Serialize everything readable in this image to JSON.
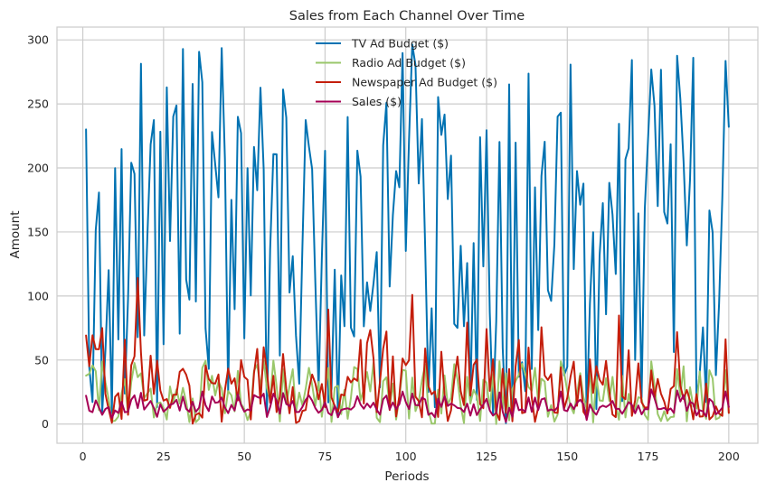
{
  "chart_data": {
    "type": "line",
    "title": "Sales from Each Channel Over Time",
    "xlabel": "Periods",
    "ylabel": "Amount",
    "xlim": [
      -8,
      209
    ],
    "ylim": [
      -15,
      310
    ],
    "xticks": [
      0,
      25,
      50,
      75,
      100,
      125,
      150,
      175,
      200
    ],
    "yticks": [
      0,
      50,
      100,
      150,
      200,
      250,
      300
    ],
    "grid": true,
    "legend_position": "top-center",
    "x": [
      1,
      2,
      3,
      4,
      5,
      6,
      7,
      8,
      9,
      10,
      11,
      12,
      13,
      14,
      15,
      16,
      17,
      18,
      19,
      20,
      21,
      22,
      23,
      24,
      25,
      26,
      27,
      28,
      29,
      30,
      31,
      32,
      33,
      34,
      35,
      36,
      37,
      38,
      39,
      40,
      41,
      42,
      43,
      44,
      45,
      46,
      47,
      48,
      49,
      50,
      51,
      52,
      53,
      54,
      55,
      56,
      57,
      58,
      59,
      60,
      61,
      62,
      63,
      64,
      65,
      66,
      67,
      68,
      69,
      70,
      71,
      72,
      73,
      74,
      75,
      76,
      77,
      78,
      79,
      80,
      81,
      82,
      83,
      84,
      85,
      86,
      87,
      88,
      89,
      90,
      91,
      92,
      93,
      94,
      95,
      96,
      97,
      98,
      99,
      100,
      101,
      102,
      103,
      104,
      105,
      106,
      107,
      108,
      109,
      110,
      111,
      112,
      113,
      114,
      115,
      116,
      117,
      118,
      119,
      120,
      121,
      122,
      123,
      124,
      125,
      126,
      127,
      128,
      129,
      130,
      131,
      132,
      133,
      134,
      135,
      136,
      137,
      138,
      139,
      140,
      141,
      142,
      143,
      144,
      145,
      146,
      147,
      148,
      149,
      150,
      151,
      152,
      153,
      154,
      155,
      156,
      157,
      158,
      159,
      160,
      161,
      162,
      163,
      164,
      165,
      166,
      167,
      168,
      169,
      170,
      171,
      172,
      173,
      174,
      175,
      176,
      177,
      178,
      179,
      180,
      181,
      182,
      183,
      184,
      185,
      186,
      187,
      188,
      189,
      190,
      191,
      192,
      193,
      194,
      195,
      196,
      197,
      198,
      199,
      200
    ],
    "series": [
      {
        "name": "TV Ad Budget ($)",
        "color": "#0072b2",
        "values": [
          230.1,
          44.5,
          17.2,
          151.5,
          180.8,
          8.7,
          57.5,
          120.2,
          8.6,
          199.8,
          66.1,
          214.7,
          23.8,
          97.5,
          204.1,
          195.4,
          67.8,
          281.4,
          69.2,
          147.3,
          218.4,
          237.4,
          13.2,
          228.3,
          62.3,
          262.9,
          142.9,
          240.1,
          248.8,
          70.6,
          292.9,
          112.9,
          97.2,
          265.6,
          95.7,
          290.7,
          266.9,
          74.7,
          43.1,
          228.0,
          202.5,
          177.0,
          293.6,
          206.9,
          25.1,
          175.1,
          89.7,
          239.9,
          227.2,
          66.9,
          199.8,
          100.4,
          216.4,
          182.6,
          262.7,
          198.9,
          7.3,
          136.2,
          210.8,
          210.7,
          53.5,
          261.3,
          239.3,
          102.7,
          131.1,
          69.0,
          31.5,
          139.3,
          237.4,
          216.8,
          199.1,
          109.8,
          26.8,
          129.4,
          213.4,
          16.9,
          27.5,
          120.5,
          5.4,
          116.0,
          76.4,
          239.8,
          75.3,
          68.4,
          213.5,
          193.2,
          76.3,
          110.7,
          88.3,
          109.8,
          134.3,
          28.6,
          217.7,
          250.9,
          107.4,
          163.3,
          197.6,
          184.9,
          289.7,
          135.2,
          222.4,
          296.4,
          280.2,
          187.9,
          238.2,
          137.9,
          25.0,
          90.4,
          13.1,
          255.4,
          225.8,
          241.7,
          175.7,
          209.6,
          78.2,
          75.1,
          139.2,
          76.4,
          125.7,
          19.4,
          141.3,
          18.8,
          224.0,
          123.1,
          229.5,
          87.2,
          7.8,
          80.2,
          220.3,
          59.6,
          0.7,
          265.2,
          8.4,
          219.8,
          36.9,
          48.3,
          25.6,
          273.7,
          43.0,
          184.9,
          73.4,
          193.7,
          220.5,
          104.6,
          96.2,
          140.3,
          240.1,
          243.2,
          38.0,
          44.7,
          280.7,
          121.0,
          197.6,
          171.3,
          187.8,
          4.1,
          93.9,
          149.8,
          11.7,
          131.7,
          172.5,
          85.7,
          188.4,
          163.5,
          117.2,
          234.5,
          17.9,
          206.8,
          215.4,
          284.3,
          50.0,
          164.5,
          19.6,
          168.4,
          222.4,
          276.9,
          248.4,
          170.2,
          276.7,
          165.6,
          156.6,
          218.5,
          56.2,
          287.6,
          253.8,
          205.0,
          139.5,
          191.1,
          286.0,
          18.7,
          39.5,
          75.5,
          17.2,
          166.8,
          149.7,
          38.2,
          94.2,
          177.0,
          283.6,
          232.1
        ]
      },
      {
        "name": "Radio Ad Budget ($)",
        "color": "#9ac76b",
        "values": [
          37.8,
          39.3,
          45.9,
          41.3,
          10.8,
          48.9,
          32.8,
          19.6,
          2.1,
          2.6,
          5.8,
          24.0,
          35.1,
          7.6,
          32.9,
          47.7,
          36.6,
          39.6,
          20.5,
          23.9,
          27.7,
          5.1,
          15.9,
          16.9,
          12.6,
          3.5,
          29.3,
          16.7,
          27.1,
          16.0,
          28.3,
          17.4,
          1.5,
          20.0,
          1.4,
          4.1,
          43.8,
          49.4,
          26.7,
          37.7,
          22.3,
          33.4,
          27.7,
          8.4,
          25.7,
          22.5,
          9.9,
          41.5,
          15.8,
          11.7,
          3.1,
          9.6,
          41.7,
          46.2,
          28.8,
          49.4,
          28.1,
          19.2,
          49.6,
          29.5,
          2.0,
          42.7,
          15.5,
          29.6,
          42.8,
          9.3,
          24.6,
          14.5,
          27.5,
          43.9,
          30.6,
          14.3,
          33.0,
          5.7,
          24.6,
          43.7,
          1.6,
          28.5,
          29.9,
          7.7,
          26.7,
          4.1,
          20.3,
          44.5,
          43.0,
          18.4,
          27.5,
          40.6,
          25.5,
          47.8,
          4.9,
          1.5,
          33.5,
          36.5,
          14.0,
          31.6,
          3.5,
          21.0,
          42.3,
          41.7,
          4.3,
          36.3,
          10.1,
          17.2,
          34.3,
          46.4,
          11.0,
          0.3,
          0.4,
          26.9,
          8.2,
          38.0,
          15.4,
          20.6,
          46.8,
          35.0,
          14.3,
          0.8,
          36.9,
          16.0,
          26.8,
          21.7,
          2.4,
          34.6,
          32.3,
          11.8,
          38.9,
          0.0,
          49.0,
          12.0,
          39.6,
          2.9,
          27.2,
          33.5,
          38.6,
          47.0,
          39.0,
          28.9,
          25.9,
          43.9,
          17.0,
          35.4,
          33.2,
          5.7,
          14.8,
          1.9,
          7.3,
          49.0,
          40.3,
          25.8,
          13.9,
          8.4,
          23.3,
          39.7,
          21.1,
          11.6,
          43.5,
          1.3,
          36.9,
          18.4,
          18.1,
          35.8,
          18.1,
          36.8,
          14.7,
          3.4,
          37.6,
          5.2,
          23.6,
          10.6,
          11.6,
          20.9,
          20.1,
          7.1,
          3.4,
          48.9,
          30.2,
          7.8,
          2.3,
          10.0,
          2.6,
          5.4,
          5.7,
          43.0,
          21.3,
          45.1,
          2.1,
          28.7,
          13.9,
          12.1,
          41.1,
          10.8,
          4.1,
          42.0,
          35.6,
          3.7,
          4.9,
          9.3,
          42.0,
          8.6
        ]
      },
      {
        "name": "Newspaper Ad Budget ($)",
        "color": "#c41e0c",
        "values": [
          69.2,
          45.1,
          69.3,
          58.5,
          58.4,
          75.0,
          23.5,
          11.6,
          1.0,
          21.2,
          24.2,
          4.0,
          65.9,
          7.2,
          46.0,
          52.9,
          114.0,
          55.8,
          18.3,
          19.1,
          53.4,
          23.5,
          49.6,
          26.2,
          18.3,
          19.5,
          12.6,
          22.9,
          22.9,
          40.8,
          43.2,
          38.6,
          30.0,
          0.3,
          7.4,
          8.5,
          5.0,
          45.7,
          35.1,
          32.0,
          31.6,
          38.7,
          1.8,
          26.4,
          43.3,
          31.5,
          35.7,
          18.5,
          49.9,
          36.8,
          34.6,
          3.6,
          39.6,
          58.7,
          15.9,
          60.0,
          41.4,
          16.6,
          37.7,
          9.3,
          21.4,
          54.7,
          27.3,
          8.4,
          28.9,
          0.9,
          2.2,
          10.2,
          11.0,
          27.2,
          38.7,
          31.7,
          19.3,
          31.3,
          13.1,
          89.4,
          20.7,
          14.2,
          9.4,
          23.1,
          22.3,
          36.9,
          32.5,
          35.6,
          33.8,
          65.7,
          16.0,
          63.2,
          73.4,
          51.4,
          9.3,
          33.0,
          59.0,
          72.3,
          10.9,
          52.9,
          5.9,
          22.0,
          51.2,
          45.9,
          49.8,
          100.9,
          21.4,
          17.9,
          5.3,
          59.0,
          29.7,
          23.2,
          25.6,
          5.5,
          56.5,
          23.2,
          2.4,
          10.7,
          34.5,
          52.7,
          25.6,
          14.8,
          79.2,
          22.3,
          46.2,
          50.4,
          15.6,
          12.4,
          74.2,
          25.9,
          50.6,
          9.2,
          3.2,
          43.1,
          8.7,
          43.0,
          2.1,
          45.1,
          65.6,
          8.5,
          9.3,
          59.7,
          20.5,
          1.7,
          12.9,
          75.6,
          37.9,
          34.4,
          38.9,
          9.0,
          8.7,
          44.3,
          11.9,
          20.6,
          37.0,
          48.7,
          14.2,
          37.7,
          9.5,
          5.7,
          50.5,
          24.3,
          45.2,
          34.6,
          30.7,
          49.3,
          25.6,
          7.4,
          5.4,
          84.8,
          21.6,
          19.4,
          57.6,
          6.4,
          18.4,
          47.4,
          17.0,
          12.8,
          13.1,
          41.8,
          20.3,
          35.2,
          23.7,
          17.6,
          8.3,
          27.4,
          29.7,
          71.8,
          30.0,
          19.6,
          26.6,
          18.2,
          3.7,
          23.4,
          5.8,
          6.0,
          31.6,
          3.6,
          6.0,
          13.8,
          8.1,
          6.4,
          66.2,
          8.7
        ]
      },
      {
        "name": "Sales ($)",
        "color": "#a60055",
        "values": [
          22.1,
          10.4,
          9.3,
          18.5,
          12.9,
          7.2,
          11.8,
          13.2,
          4.8,
          10.6,
          8.6,
          17.4,
          9.2,
          9.7,
          19.0,
          22.4,
          12.5,
          24.4,
          11.3,
          14.6,
          18.0,
          12.5,
          5.6,
          15.5,
          9.7,
          12.0,
          15.0,
          15.9,
          18.9,
          10.5,
          21.4,
          11.9,
          9.6,
          17.4,
          9.5,
          12.8,
          25.4,
          14.7,
          10.1,
          21.5,
          16.6,
          17.1,
          20.7,
          12.9,
          8.5,
          14.9,
          10.6,
          23.2,
          14.8,
          9.7,
          11.4,
          10.7,
          22.6,
          21.2,
          20.2,
          23.7,
          5.5,
          13.2,
          23.8,
          18.4,
          8.1,
          24.2,
          15.7,
          14.0,
          18.0,
          9.3,
          9.5,
          13.4,
          18.9,
          22.3,
          18.3,
          12.4,
          8.8,
          11.0,
          17.0,
          8.7,
          6.9,
          14.2,
          5.3,
          11.0,
          11.8,
          12.3,
          11.3,
          13.6,
          21.7,
          15.2,
          12.0,
          16.0,
          12.9,
          16.7,
          11.2,
          7.3,
          19.4,
          22.2,
          11.5,
          16.9,
          11.7,
          15.5,
          25.4,
          17.2,
          11.7,
          23.8,
          14.8,
          14.7,
          20.7,
          19.2,
          7.2,
          8.7,
          5.3,
          19.8,
          13.4,
          21.8,
          14.1,
          15.9,
          14.6,
          12.6,
          12.2,
          9.4,
          15.9,
          6.6,
          15.5,
          7.0,
          11.6,
          15.2,
          19.7,
          10.6,
          6.6,
          8.8,
          24.7,
          9.7,
          1.6,
          12.7,
          5.7,
          19.6,
          10.8,
          11.6,
          9.5,
          20.8,
          9.6,
          20.7,
          10.9,
          19.2,
          20.1,
          10.4,
          11.4,
          10.3,
          13.2,
          25.4,
          10.9,
          10.1,
          16.1,
          11.6,
          16.6,
          19.0,
          15.6,
          3.2,
          15.3,
          10.1,
          7.3,
          12.9,
          14.4,
          13.3,
          14.9,
          18.0,
          11.9,
          11.9,
          8.0,
          12.2,
          17.1,
          15.0,
          8.4,
          14.5,
          7.6,
          11.7,
          11.5,
          27.0,
          20.2,
          11.7,
          11.8,
          12.6,
          10.5,
          12.2,
          8.7,
          26.2,
          17.6,
          22.6,
          10.3,
          17.3,
          15.9,
          6.7,
          10.8,
          9.9,
          5.9,
          19.6,
          17.3,
          7.6,
          9.7,
          12.8,
          25.5,
          13.4
        ]
      }
    ]
  }
}
